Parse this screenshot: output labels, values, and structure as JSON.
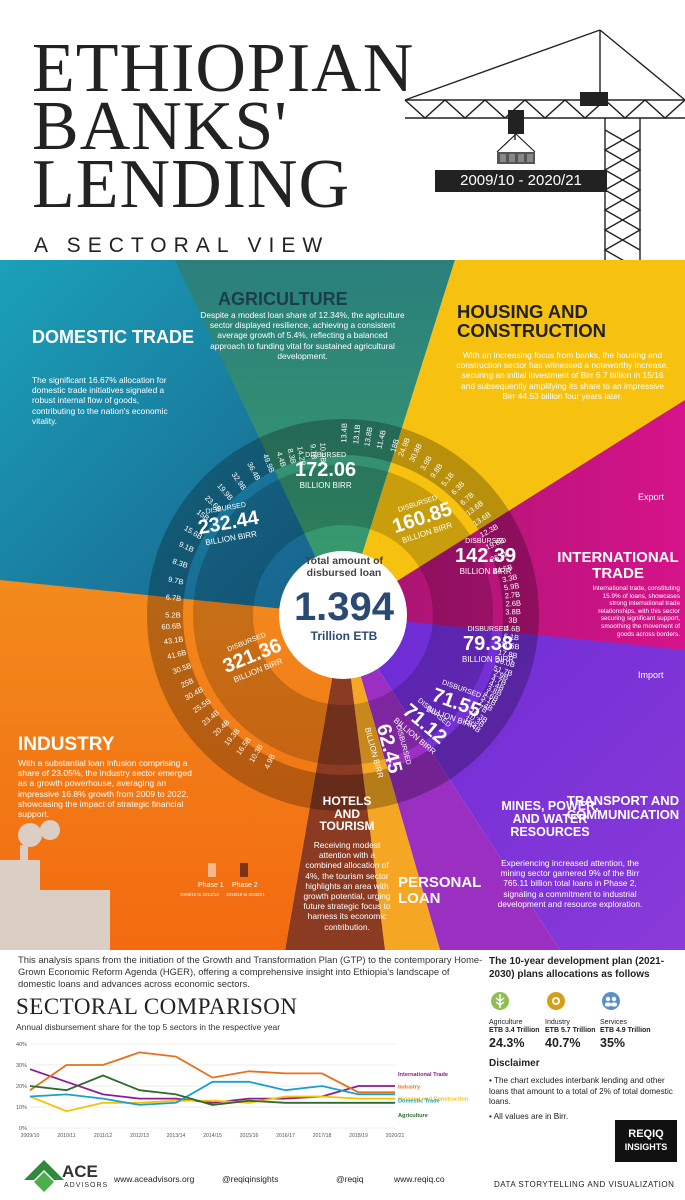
{
  "header": {
    "title_lines": [
      "ETHIOPIAN",
      "BANKS'",
      "LENDING"
    ],
    "subtitle": "A SECTORAL VIEW",
    "period": "2009/10 - 2020/21"
  },
  "center": {
    "label": "Total amount of disbursed loan",
    "value": "1.394",
    "unit": "Trillion ETB"
  },
  "sectors": {
    "domestic_trade": {
      "title": "DOMESTIC TRADE",
      "text": "The significant 16.67% allocation for domestic trade initiatives signaled a robust internal flow of goods, contributing to the nation's economic vitality.",
      "disbursed": "DISBURSED",
      "total": "232.44",
      "unit": "BILLION BIRR",
      "values": [
        "5.2B",
        "6.7B",
        "9.7B",
        "8.3B",
        "9.1B",
        "15.6B",
        "15B",
        "23.6B",
        "19.9B",
        "32.9B",
        "36.4B",
        "49.9B"
      ],
      "years": [
        "18/19",
        "19/20",
        "20/21"
      ]
    },
    "agriculture": {
      "title": "AGRICULTURE",
      "text": "Despite a modest loan share of 12.34%, the agriculture sector displayed resilience, achieving a consistent average growth of 5.4%, reflecting a balanced approach to funding vital for sustained agricultural development.",
      "disbursed": "DISBURSED",
      "total": "172.06",
      "unit": "BILLION BIRR",
      "values": [
        "4.4B",
        "8.3B",
        "14.2B",
        "9.7B",
        "10.9B",
        "13.4B",
        "13.1B",
        "13.8B",
        "11.4B",
        "18B",
        "24.9B",
        "30.8B"
      ],
      "years": [
        "18/19",
        "19/20",
        "20/21"
      ]
    },
    "housing": {
      "title": "HOUSING AND CONSTRUCTION",
      "text": "With an increasing focus from banks, the housing and construction sector has witnessed a noteworthy increase, securing an initial investment of Birr 6.7 billion in 15/16 and subsequently amplifying its share to an impressive Birr 44.53 billion four years later.",
      "disbursed": "DISBURSED",
      "total": "160.85",
      "unit": "BILLION BIRR",
      "values": [
        "3.9B",
        "9.8B",
        "5.1B",
        "6.3B",
        "6.7B",
        "13.6B",
        "13.6B",
        "12.3B",
        "19.6B",
        "25.5B",
        "44.5B"
      ],
      "years": [
        "15/16",
        "16/17",
        "17/18"
      ]
    },
    "international_trade": {
      "title": "INTERNATIONAL TRADE",
      "text": "International trade, constituting 15.9% of loans, showcases strong international trade relationships, with this sector securing significant support, smoothing the movement of goods across borders.",
      "export_label": "Export",
      "import_label": "Import",
      "export_total": "142.39",
      "import_total": "79.38",
      "disbursed": "DISBURSED",
      "unit": "BILLION BIRR",
      "export_tag": "EXPORT",
      "import_tag": "IMPORT",
      "export_values": [
        "3.3B",
        "5.9B",
        "2.7B",
        "2.6B",
        "3.8B",
        "3B",
        "4.6B",
        "6.1B",
        "11.6B",
        "17.8B",
        "26.0B",
        "51.7B"
      ],
      "import_values": [
        "2.9B",
        "4.7B",
        "4.4B",
        "3.8B",
        "4.6B",
        "5.1B",
        "7.4B",
        "7B",
        "10.3B",
        "10.3B",
        "15.4B"
      ],
      "years": [
        "18/19",
        "19/20",
        "20/21"
      ]
    },
    "transport": {
      "title": "TRANSPORT AND COMMUNICATION",
      "disbursed": "DISBURSED",
      "total": "71.55",
      "unit": "BILLION BIRR"
    },
    "mines": {
      "title": "MINES, POWER, AND WATER RESOURCES",
      "text": "Experiencing increased attention, the mining sector garnered 9% of the Birr 765.11 billion total loans in Phase 2, signaling a commitment to industrial development and resource exploration.",
      "disbursed": "DISBURSED",
      "total": "71.12",
      "unit": "BILLION BIRR"
    },
    "personal": {
      "title": "PERSONAL LOAN",
      "disbursed": "DISBURSED",
      "total": "62.45",
      "unit": "BILLION BIRR"
    },
    "hotels": {
      "title": "HOTELS AND TOURISM",
      "text": "Receiving modest attention with a combined allocation of 4%, the tourism sector highlights an area with growth potential, urging future strategic focus to harness its economic contribution."
    },
    "industry": {
      "title": "INDUSTRY",
      "text": "With a substantial loan infusion comprising a share of 23.05%, the industry sector emerged as a growth powerhouse, averaging an impressive 16.8% growth from 2009 to 2022, showcasing the impact of strategic financial support.",
      "disbursed": "DISBURSED",
      "total": "321.36",
      "unit": "BILLION BIRR",
      "values": [
        "4.9B",
        "10.3B",
        "16.5B",
        "19.3B",
        "20.4B",
        "23.4B",
        "25.5B",
        "30.4B",
        "25B",
        "30.5B",
        "41.6B",
        "43.1B",
        "60.6B"
      ],
      "years": [
        "18/19",
        "19/20",
        "20/21"
      ],
      "phase1": "Phase 1",
      "phase1_range": "2009/10 to 2013/14",
      "phase2": "Phase 2",
      "phase2_range": "2018/19 to 2020/21"
    }
  },
  "intro": "This analysis spans from the initiation of the Growth and Transformation Plan (GTP) to the contemporary Home-Grown Economic Reform Agenda (HGER), offering a comprehensive insight into Ethiopia's landscape of domestic loans and advances across economic sectors.",
  "comparison": {
    "title": "SECTORAL COMPARISON",
    "subtitle": "Annual disbursement share for the top 5 sectors in the respective year"
  },
  "chart_data": {
    "type": "line",
    "title": "SECTORAL COMPARISON",
    "subtitle": "Annual disbursement share for the top 5 sectors in the respective year",
    "x": [
      "2009/10",
      "2010/11",
      "2011/12",
      "2012/13",
      "2013/14",
      "2014/15",
      "2015/16",
      "2016/17",
      "2017/18",
      "2018/19",
      "2020/21"
    ],
    "ylim": [
      0,
      40
    ],
    "yticks": [
      "0%",
      "10%",
      "20%",
      "30%",
      "40%"
    ],
    "series": [
      {
        "name": "International Trade",
        "color": "#8e1c8f",
        "values": [
          28,
          22,
          16,
          14,
          14,
          12,
          14,
          14,
          15,
          20,
          20
        ]
      },
      {
        "name": "Industry",
        "color": "#e8701a",
        "values": [
          18,
          30,
          30,
          36,
          34,
          24,
          27,
          26,
          26,
          17,
          17
        ]
      },
      {
        "name": "Housing and Construction",
        "color": "#f4c400",
        "values": [
          15,
          8,
          12,
          12,
          13,
          13,
          12,
          15,
          15,
          14,
          14
        ]
      },
      {
        "name": "Domestic Trade",
        "color": "#1a9fd0",
        "values": [
          15,
          16,
          14,
          11,
          12,
          22,
          22,
          18,
          20,
          16,
          16
        ]
      },
      {
        "name": "Agriculture",
        "color": "#2d6b2e",
        "values": [
          20,
          18,
          25,
          18,
          16,
          11,
          13,
          12,
          12,
          12,
          12
        ]
      }
    ],
    "legend": "right"
  },
  "plan": {
    "title": "The 10-year development plan (2021-2030) plans allocations as follows",
    "items": [
      {
        "name": "Agriculture",
        "amount": "ETB 3.4 Trillion",
        "pct": "24.3%",
        "icon": "wheat-icon"
      },
      {
        "name": "Industry",
        "amount": "ETB 5.7 Trillion",
        "pct": "40.7%",
        "icon": "gear-icon"
      },
      {
        "name": "Services",
        "amount": "ETB 4.9 Trillion",
        "pct": "35%",
        "icon": "people-icon"
      }
    ]
  },
  "disclaimer": {
    "title": "Disclaimer",
    "items": [
      "• The chart excludes interbank lending and other loans that amount to a total of 2% of total domestic loans.",
      "• All values are in Birr."
    ]
  },
  "brand": {
    "reqiq_top": "REQIQ",
    "reqiq_bottom": "INSIGHTS",
    "tagline": "DATA STORYTELLING AND VISUALIZATION",
    "ace_name": "ACE",
    "ace_sub": "ADVISORS",
    "site1": "www.aceadvisors.org",
    "social": "@reqiqinsights",
    "linkedin": "@reqiq",
    "site2": "www.reqiq.co"
  },
  "colors": {
    "domestic": "#1d7fa6",
    "agriculture": "#2e8b6a",
    "housing": "#f1c40f",
    "international": "#b3157a",
    "transport": "#7a2bd0",
    "mines": "#9b2fbf",
    "personal": "#f5a623",
    "hotels": "#8b3a1f",
    "industry": "#f07a10"
  }
}
